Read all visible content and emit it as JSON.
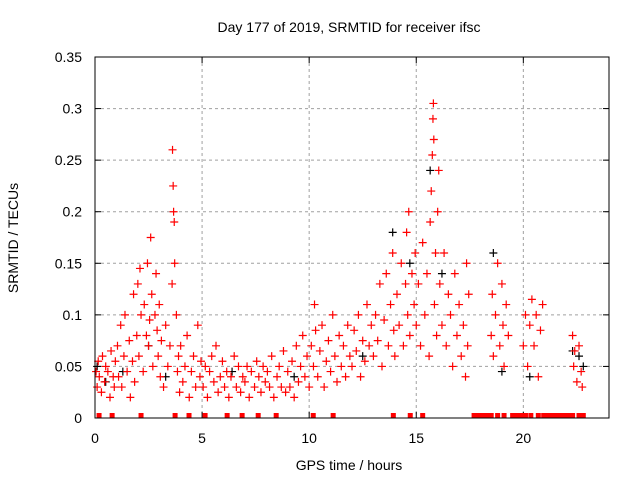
{
  "chart_data": {
    "type": "scatter",
    "title": "Day 177 of 2019, SRMTID for receiver ifsc",
    "xlabel": "GPS time / hours",
    "ylabel": "SRMTID / TECUs",
    "xlim": [
      0,
      24
    ],
    "ylim": [
      0,
      0.35
    ],
    "grid": true,
    "x_ticks": [
      "0",
      "5",
      "10",
      "15",
      "20"
    ],
    "x_tick_values": [
      0,
      5,
      10,
      15,
      20
    ],
    "y_ticks": [
      "0",
      "0.05",
      "0.1",
      "0.15",
      "0.2",
      "0.25",
      "0.3",
      "0.35"
    ],
    "y_tick_values": [
      0,
      0.05,
      0.1,
      0.15,
      0.2,
      0.25,
      0.3,
      0.35
    ],
    "colors": {
      "red": "#ff0000",
      "black": "#000000",
      "grid": "#a0a0a0"
    },
    "series": [
      {
        "name": "black",
        "color": "#000000",
        "marker": "plus",
        "points": [
          [
            0.1,
            0.05
          ],
          [
            0.5,
            0.035
          ],
          [
            1.3,
            0.045
          ],
          [
            2.5,
            0.07
          ],
          [
            3.3,
            0.04
          ],
          [
            6.4,
            0.045
          ],
          [
            9.3,
            0.04
          ],
          [
            12.5,
            0.06
          ],
          [
            13.9,
            0.18
          ],
          [
            14.7,
            0.15
          ],
          [
            15.65,
            0.24
          ],
          [
            16.2,
            0.14
          ],
          [
            18.6,
            0.16
          ],
          [
            19.0,
            0.045
          ],
          [
            20.3,
            0.04
          ],
          [
            22.3,
            0.065
          ],
          [
            22.6,
            0.06
          ],
          [
            22.8,
            0.05
          ]
        ]
      },
      {
        "name": "red",
        "color": "#ff0000",
        "marker": "plus",
        "points": [
          [
            0.05,
            0.045
          ],
          [
            0.1,
            0.03
          ],
          [
            0.15,
            0.055
          ],
          [
            0.2,
            0.04
          ],
          [
            0.3,
            0.025
          ],
          [
            0.35,
            0.06
          ],
          [
            0.45,
            0.035
          ],
          [
            0.5,
            0.05
          ],
          [
            0.6,
            0.045
          ],
          [
            0.7,
            0.02
          ],
          [
            0.75,
            0.065
          ],
          [
            0.85,
            0.04
          ],
          [
            0.9,
            0.03
          ],
          [
            0.95,
            0.055
          ],
          [
            1.05,
            0.07
          ],
          [
            1.1,
            0.04
          ],
          [
            1.2,
            0.09
          ],
          [
            1.25,
            0.03
          ],
          [
            1.35,
            0.06
          ],
          [
            1.4,
            0.1
          ],
          [
            1.5,
            0.045
          ],
          [
            1.6,
            0.075
          ],
          [
            1.65,
            0.02
          ],
          [
            1.75,
            0.055
          ],
          [
            1.8,
            0.12
          ],
          [
            1.85,
            0.035
          ],
          [
            1.95,
            0.08
          ],
          [
            2.0,
            0.13
          ],
          [
            2.05,
            0.06
          ],
          [
            2.1,
            0.145
          ],
          [
            2.15,
            0.1
          ],
          [
            2.25,
            0.045
          ],
          [
            2.3,
            0.11
          ],
          [
            2.4,
            0.08
          ],
          [
            2.45,
            0.15
          ],
          [
            2.5,
            0.07
          ],
          [
            2.55,
            0.095
          ],
          [
            2.6,
            0.175
          ],
          [
            2.65,
            0.12
          ],
          [
            2.7,
            0.05
          ],
          [
            2.8,
            0.1
          ],
          [
            2.85,
            0.14
          ],
          [
            2.9,
            0.085
          ],
          [
            2.95,
            0.06
          ],
          [
            3.0,
            0.11
          ],
          [
            3.05,
            0.04
          ],
          [
            3.1,
            0.075
          ],
          [
            3.2,
            0.03
          ],
          [
            3.3,
            0.09
          ],
          [
            3.4,
            0.05
          ],
          [
            3.5,
            0.07
          ],
          [
            3.6,
            0.13
          ],
          [
            3.62,
            0.26
          ],
          [
            3.65,
            0.225
          ],
          [
            3.67,
            0.2
          ],
          [
            3.7,
            0.19
          ],
          [
            3.72,
            0.15
          ],
          [
            3.8,
            0.1
          ],
          [
            3.85,
            0.045
          ],
          [
            3.9,
            0.06
          ],
          [
            3.95,
            0.025
          ],
          [
            4.0,
            0.07
          ],
          [
            4.1,
            0.035
          ],
          [
            4.2,
            0.05
          ],
          [
            4.3,
            0.08
          ],
          [
            4.4,
            0.02
          ],
          [
            4.5,
            0.045
          ],
          [
            4.6,
            0.06
          ],
          [
            4.7,
            0.03
          ],
          [
            4.8,
            0.09
          ],
          [
            4.9,
            0.04
          ],
          [
            4.95,
            0.055
          ],
          [
            5.05,
            0.03
          ],
          [
            5.15,
            0.05
          ],
          [
            5.25,
            0.02
          ],
          [
            5.35,
            0.045
          ],
          [
            5.45,
            0.06
          ],
          [
            5.55,
            0.035
          ],
          [
            5.65,
            0.07
          ],
          [
            5.75,
            0.025
          ],
          [
            5.85,
            0.04
          ],
          [
            5.95,
            0.055
          ],
          [
            6.05,
            0.03
          ],
          [
            6.15,
            0.045
          ],
          [
            6.25,
            0.02
          ],
          [
            6.35,
            0.04
          ],
          [
            6.5,
            0.06
          ],
          [
            6.6,
            0.03
          ],
          [
            6.7,
            0.05
          ],
          [
            6.8,
            0.025
          ],
          [
            6.9,
            0.04
          ],
          [
            7.0,
            0.035
          ],
          [
            7.1,
            0.05
          ],
          [
            7.2,
            0.02
          ],
          [
            7.3,
            0.045
          ],
          [
            7.45,
            0.03
          ],
          [
            7.55,
            0.055
          ],
          [
            7.65,
            0.04
          ],
          [
            7.75,
            0.025
          ],
          [
            7.85,
            0.05
          ],
          [
            7.95,
            0.035
          ],
          [
            8.05,
            0.045
          ],
          [
            8.15,
            0.03
          ],
          [
            8.25,
            0.06
          ],
          [
            8.35,
            0.02
          ],
          [
            8.5,
            0.04
          ],
          [
            8.6,
            0.05
          ],
          [
            8.7,
            0.03
          ],
          [
            8.8,
            0.065
          ],
          [
            8.9,
            0.025
          ],
          [
            9.0,
            0.045
          ],
          [
            9.1,
            0.03
          ],
          [
            9.2,
            0.055
          ],
          [
            9.3,
            0.02
          ],
          [
            9.4,
            0.07
          ],
          [
            9.5,
            0.035
          ],
          [
            9.6,
            0.05
          ],
          [
            9.7,
            0.08
          ],
          [
            9.8,
            0.04
          ],
          [
            9.9,
            0.06
          ],
          [
            10.0,
            0.03
          ],
          [
            10.1,
            0.07
          ],
          [
            10.2,
            0.05
          ],
          [
            10.25,
            0.11
          ],
          [
            10.3,
            0.085
          ],
          [
            10.4,
            0.04
          ],
          [
            10.5,
            0.065
          ],
          [
            10.6,
            0.09
          ],
          [
            10.7,
            0.03
          ],
          [
            10.8,
            0.055
          ],
          [
            10.9,
            0.075
          ],
          [
            11.0,
            0.045
          ],
          [
            11.1,
            0.1
          ],
          [
            11.2,
            0.06
          ],
          [
            11.3,
            0.035
          ],
          [
            11.4,
            0.08
          ],
          [
            11.5,
            0.05
          ],
          [
            11.6,
            0.07
          ],
          [
            11.7,
            0.04
          ],
          [
            11.8,
            0.09
          ],
          [
            11.9,
            0.06
          ],
          [
            12.0,
            0.05
          ],
          [
            12.1,
            0.085
          ],
          [
            12.2,
            0.065
          ],
          [
            12.3,
            0.1
          ],
          [
            12.4,
            0.04
          ],
          [
            12.5,
            0.075
          ],
          [
            12.6,
            0.055
          ],
          [
            12.7,
            0.11
          ],
          [
            12.8,
            0.07
          ],
          [
            12.9,
            0.09
          ],
          [
            13.0,
            0.06
          ],
          [
            13.1,
            0.1
          ],
          [
            13.2,
            0.075
          ],
          [
            13.3,
            0.13
          ],
          [
            13.4,
            0.05
          ],
          [
            13.5,
            0.095
          ],
          [
            13.6,
            0.14
          ],
          [
            13.7,
            0.07
          ],
          [
            13.8,
            0.11
          ],
          [
            13.9,
            0.16
          ],
          [
            13.95,
            0.085
          ],
          [
            14.0,
            0.06
          ],
          [
            14.1,
            0.12
          ],
          [
            14.2,
            0.09
          ],
          [
            14.3,
            0.15
          ],
          [
            14.4,
            0.07
          ],
          [
            14.5,
            0.13
          ],
          [
            14.55,
            0.18
          ],
          [
            14.6,
            0.1
          ],
          [
            14.65,
            0.2
          ],
          [
            14.7,
            0.08
          ],
          [
            14.8,
            0.14
          ],
          [
            14.9,
            0.11
          ],
          [
            14.95,
            0.16
          ],
          [
            15.0,
            0.09
          ],
          [
            15.1,
            0.13
          ],
          [
            15.2,
            0.07
          ],
          [
            15.3,
            0.17
          ],
          [
            15.4,
            0.1
          ],
          [
            15.5,
            0.14
          ],
          [
            15.6,
            0.06
          ],
          [
            15.65,
            0.19
          ],
          [
            15.7,
            0.22
          ],
          [
            15.75,
            0.255
          ],
          [
            15.78,
            0.29
          ],
          [
            15.8,
            0.305
          ],
          [
            15.82,
            0.27
          ],
          [
            15.85,
            0.11
          ],
          [
            15.9,
            0.16
          ],
          [
            15.95,
            0.08
          ],
          [
            16.0,
            0.2
          ],
          [
            16.05,
            0.24
          ],
          [
            16.1,
            0.13
          ],
          [
            16.2,
            0.09
          ],
          [
            16.3,
            0.16
          ],
          [
            16.4,
            0.07
          ],
          [
            16.5,
            0.12
          ],
          [
            16.6,
            0.1
          ],
          [
            16.7,
            0.05
          ],
          [
            16.8,
            0.14
          ],
          [
            16.9,
            0.08
          ],
          [
            17.0,
            0.11
          ],
          [
            17.1,
            0.06
          ],
          [
            17.2,
            0.09
          ],
          [
            17.3,
            0.04
          ],
          [
            17.35,
            0.15
          ],
          [
            17.4,
            0.07
          ],
          [
            17.45,
            0.12
          ],
          [
            18.5,
            0.08
          ],
          [
            18.55,
            0.12
          ],
          [
            18.6,
            0.06
          ],
          [
            18.7,
            0.1
          ],
          [
            18.8,
            0.15
          ],
          [
            18.9,
            0.07
          ],
          [
            19.0,
            0.13
          ],
          [
            19.05,
            0.09
          ],
          [
            19.1,
            0.05
          ],
          [
            19.2,
            0.11
          ],
          [
            19.3,
            0.08
          ],
          [
            20.0,
            0.07
          ],
          [
            20.1,
            0.1
          ],
          [
            20.2,
            0.05
          ],
          [
            20.3,
            0.09
          ],
          [
            20.4,
            0.115
          ],
          [
            20.5,
            0.07
          ],
          [
            20.6,
            0.1
          ],
          [
            20.7,
            0.04
          ],
          [
            20.8,
            0.085
          ],
          [
            20.9,
            0.11
          ],
          [
            22.3,
            0.08
          ],
          [
            22.35,
            0.05
          ],
          [
            22.4,
            0.065
          ],
          [
            22.5,
            0.035
          ],
          [
            22.6,
            0.07
          ],
          [
            22.7,
            0.045
          ],
          [
            22.75,
            0.03
          ]
        ]
      },
      {
        "name": "zero-markers",
        "color": "#ff0000",
        "marker": "square",
        "y": 0,
        "x": [
          0.19,
          0.8,
          2.15,
          3.74,
          4.39,
          5.14,
          6.17,
          6.87,
          7.62,
          8.46,
          10.19,
          11.12,
          13.93,
          14.72,
          15.3,
          17.7,
          17.85,
          18.0,
          18.15,
          18.3,
          18.5,
          18.8,
          19.1,
          19.5,
          19.65,
          19.8,
          19.95,
          20.1,
          20.35,
          20.7,
          20.95,
          21.1,
          21.25,
          21.4,
          21.55,
          21.7,
          21.85,
          22.0,
          22.15,
          22.3,
          22.6,
          22.8
        ]
      }
    ]
  }
}
